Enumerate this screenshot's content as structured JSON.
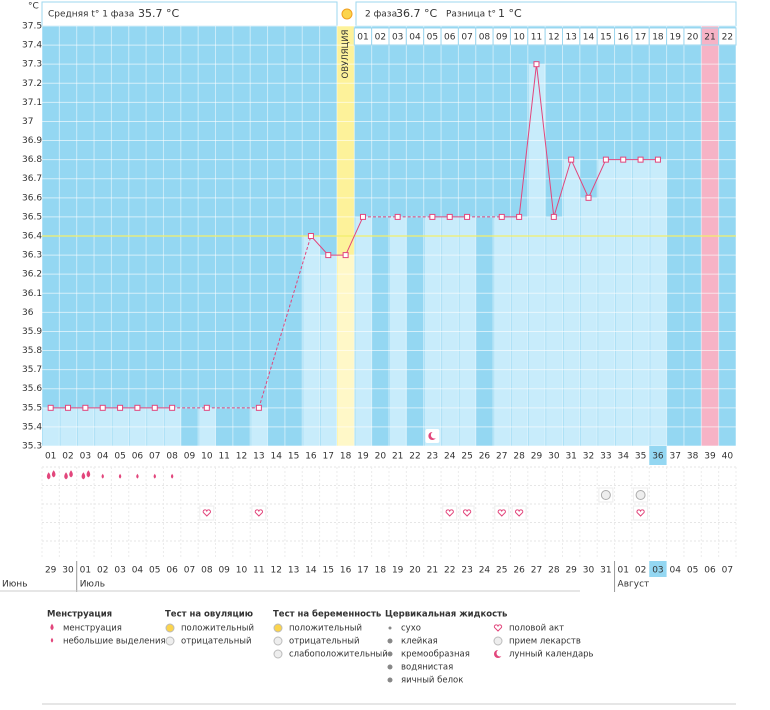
{
  "header": {
    "phase1_label": "Средняя t° 1 фаза",
    "phase1_value": "35.7 °C",
    "phase2_label": "2 фаза",
    "phase2_value": "36.7 °C",
    "diff_label": "Разница t°",
    "diff_value": "1 °C"
  },
  "chart_data": {
    "type": "line",
    "y_unit": "°C",
    "categories": [
      "01",
      "02",
      "03",
      "04",
      "05",
      "06",
      "07",
      "08",
      "09",
      "10",
      "11",
      "12",
      "13",
      "14",
      "15",
      "16",
      "17",
      "18",
      "19",
      "20",
      "21",
      "22",
      "23",
      "24",
      "25",
      "26",
      "27",
      "28",
      "29",
      "30",
      "31",
      "32",
      "33",
      "34",
      "35",
      "36",
      "37",
      "38",
      "39",
      "40"
    ],
    "values": [
      35.5,
      35.5,
      35.5,
      35.5,
      35.5,
      35.5,
      35.5,
      35.5,
      null,
      35.5,
      null,
      null,
      35.5,
      null,
      null,
      36.4,
      36.3,
      36.3,
      36.5,
      null,
      36.5,
      null,
      36.5,
      36.5,
      36.5,
      null,
      36.5,
      36.5,
      37.3,
      36.5,
      36.8,
      36.6,
      36.8,
      36.8,
      36.8,
      36.8,
      null,
      null,
      null,
      null
    ],
    "color": "#e2467c",
    "ylim": [
      35.3,
      37.5
    ],
    "yticks": [
      35.3,
      35.4,
      35.5,
      35.6,
      35.7,
      35.8,
      35.9,
      36,
      36.1,
      36.2,
      36.3,
      36.4,
      36.5,
      36.6,
      36.7,
      36.8,
      36.9,
      37,
      37.1,
      37.2,
      37.3,
      37.4,
      37.5
    ],
    "grid": true,
    "coverline": 36.4,
    "ovulation_label": "ОВУЛЯЦИЯ",
    "ovulation_category": "18",
    "expected_category": "39",
    "today_category": "36",
    "luteal_days": [
      null,
      null,
      null,
      null,
      null,
      null,
      null,
      null,
      null,
      null,
      null,
      null,
      null,
      null,
      null,
      null,
      null,
      null,
      "01",
      "02",
      "03",
      "04",
      "05",
      "06",
      "07",
      "08",
      "09",
      "10",
      "11",
      "12",
      "13",
      "14",
      "15",
      "16",
      "17",
      "18",
      "19",
      "20",
      "21",
      "22"
    ],
    "calendar_dates": [
      "29",
      "30",
      "01",
      "02",
      "03",
      "04",
      "05",
      "06",
      "07",
      "08",
      "09",
      "10",
      "11",
      "12",
      "13",
      "14",
      "15",
      "16",
      "17",
      "18",
      "19",
      "20",
      "21",
      "22",
      "23",
      "24",
      "25",
      "26",
      "27",
      "28",
      "29",
      "30",
      "31",
      "01",
      "02",
      "03",
      "04",
      "05",
      "06",
      "07"
    ],
    "weekend": [
      true,
      true,
      false,
      false,
      false,
      false,
      false,
      true,
      true,
      false,
      false,
      false,
      false,
      false,
      true,
      true,
      false,
      false,
      false,
      false,
      false,
      true,
      true,
      false,
      false,
      false,
      false,
      false,
      true,
      true,
      false,
      false,
      false,
      false,
      false,
      false,
      true,
      true,
      false,
      false
    ],
    "month_labels": [
      "Июнь",
      null,
      "Июль",
      null,
      null,
      null,
      null,
      null,
      null,
      null,
      null,
      null,
      null,
      null,
      null,
      null,
      null,
      null,
      null,
      null,
      null,
      null,
      null,
      null,
      null,
      null,
      null,
      null,
      null,
      null,
      null,
      null,
      null,
      "Август",
      null,
      null,
      null,
      null,
      null,
      null
    ],
    "menstruation_heavy_days": [
      "01",
      "02",
      "03"
    ],
    "menstruation_light_days": [
      "04",
      "05",
      "06",
      "07",
      "08"
    ],
    "intercourse_days": [
      "10",
      "13",
      "24",
      "25",
      "27",
      "28",
      "35"
    ],
    "medication_days": [
      "33",
      "35"
    ],
    "moon_days": [
      "23"
    ]
  },
  "legend": [
    {
      "title": "Менструация",
      "items": [
        "менструация",
        "небольшие выделения"
      ]
    },
    {
      "title": "Тест на овуляцию",
      "items": [
        "положительный",
        "отрицательный"
      ]
    },
    {
      "title": "Тест на беременность",
      "items": [
        "положительный",
        "отрицательный",
        "слабоположительный"
      ]
    },
    {
      "title": "Цервикальная жидкость",
      "items": [
        "сухо",
        "клейкая",
        "кремообразная",
        "водянистая",
        "яичный белок"
      ]
    },
    {
      "items": [
        "половой акт",
        "прием лекарств",
        "лунный календарь"
      ]
    }
  ]
}
